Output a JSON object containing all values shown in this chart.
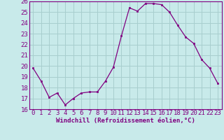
{
  "xlabel": "Windchill (Refroidissement éolien,°C)",
  "hours": [
    0,
    1,
    2,
    3,
    4,
    5,
    6,
    7,
    8,
    9,
    10,
    11,
    12,
    13,
    14,
    15,
    16,
    17,
    18,
    19,
    20,
    21,
    22,
    23
  ],
  "values": [
    19.8,
    18.6,
    17.1,
    17.5,
    16.4,
    17.0,
    17.5,
    17.6,
    17.6,
    18.6,
    19.9,
    22.8,
    25.4,
    25.1,
    25.8,
    25.8,
    25.7,
    25.0,
    23.8,
    22.7,
    22.1,
    20.6,
    19.8,
    18.4
  ],
  "line_color": "#800080",
  "marker_color": "#800080",
  "bg_color": "#c8eaea",
  "grid_color": "#a8cece",
  "text_color": "#800080",
  "ylim": [
    16,
    26
  ],
  "yticks": [
    16,
    17,
    18,
    19,
    20,
    21,
    22,
    23,
    24,
    25,
    26
  ],
  "xticks": [
    0,
    1,
    2,
    3,
    4,
    5,
    6,
    7,
    8,
    9,
    10,
    11,
    12,
    13,
    14,
    15,
    16,
    17,
    18,
    19,
    20,
    21,
    22,
    23
  ],
  "tick_fontsize": 6.5,
  "xlabel_fontsize": 6.5
}
